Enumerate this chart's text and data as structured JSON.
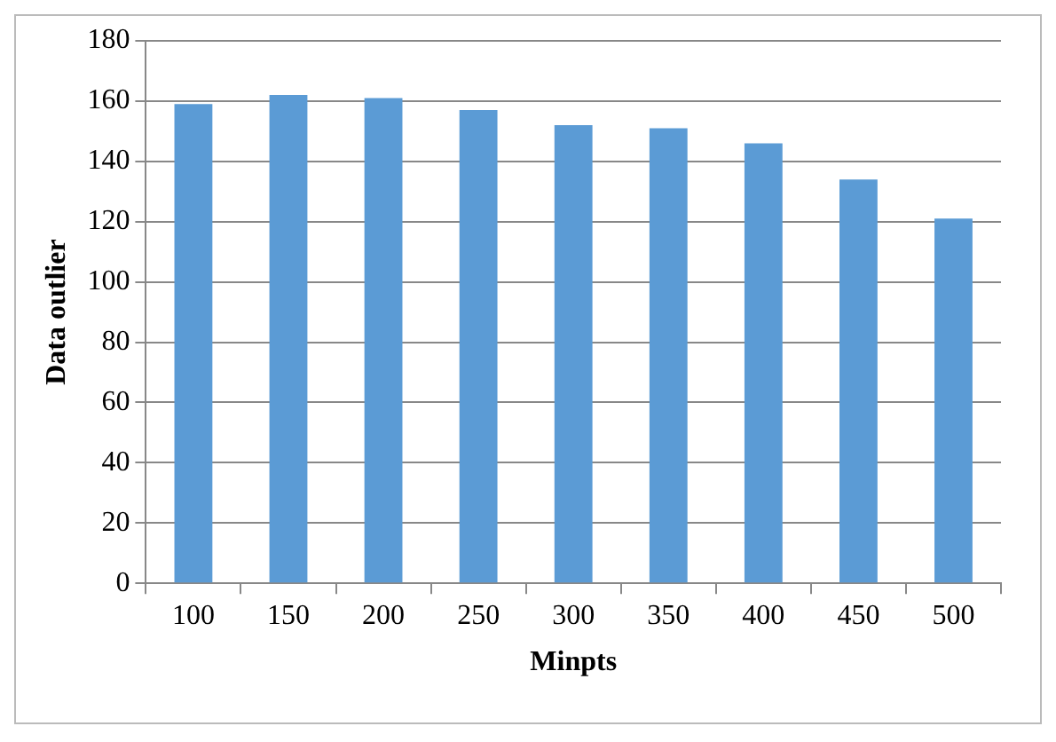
{
  "chart_data": {
    "type": "bar",
    "xlabel": "Minpts",
    "ylabel": "Data outlier",
    "categories": [
      "100",
      "150",
      "200",
      "250",
      "300",
      "350",
      "400",
      "450",
      "500"
    ],
    "values": [
      159,
      162,
      161,
      157,
      152,
      151,
      146,
      134,
      121
    ],
    "color": "#5b9bd5",
    "ylim": [
      0,
      180
    ],
    "yticks": [
      0,
      20,
      40,
      60,
      80,
      100,
      120,
      140,
      160,
      180
    ],
    "grid": "y"
  }
}
